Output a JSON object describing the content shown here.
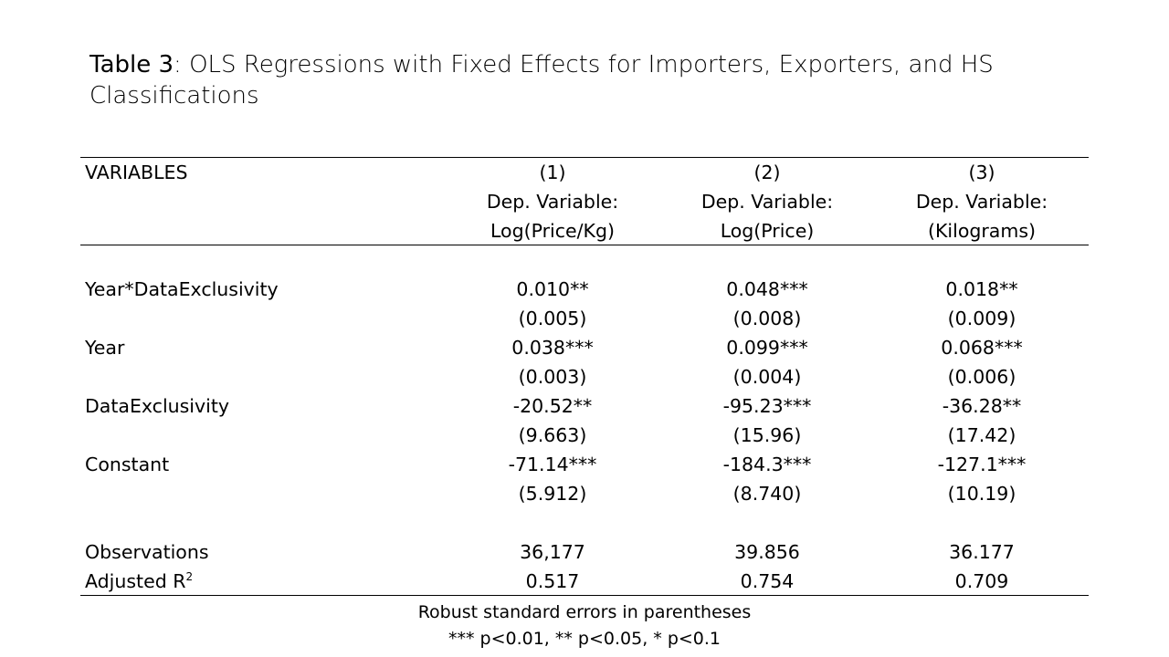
{
  "title": {
    "label": "Table 3",
    "text": ": OLS Regressions with Fixed Effects for Importers, Exporters, and HS Classifications"
  },
  "header": {
    "variables_label": "VARIABLES",
    "columns": [
      {
        "num": "(1)",
        "dep": "Dep. Variable:",
        "var": "Log(Price/Kg)"
      },
      {
        "num": "(2)",
        "dep": "Dep. Variable:",
        "var": "Log(Price)"
      },
      {
        "num": "(3)",
        "dep": "Dep. Variable:",
        "var": "(Kilograms)"
      }
    ]
  },
  "rows": [
    {
      "label": "Year*DataExclusivity",
      "coef": [
        "0.010**",
        "0.048***",
        "0.018**"
      ],
      "se": [
        "(0.005)",
        "(0.008)",
        "(0.009)"
      ]
    },
    {
      "label": "Year",
      "coef": [
        "0.038***",
        "0.099***",
        "0.068***"
      ],
      "se": [
        "(0.003)",
        "(0.004)",
        "(0.006)"
      ]
    },
    {
      "label": "DataExclusivity",
      "coef": [
        "-20.52**",
        "-95.23***",
        "-36.28**"
      ],
      "se": [
        "(9.663)",
        "(15.96)",
        "(17.42)"
      ]
    },
    {
      "label": "Constant",
      "coef": [
        "-71.14***",
        "-184.3***",
        "-127.1***"
      ],
      "se": [
        "(5.912)",
        "(8.740)",
        "(10.19)"
      ]
    }
  ],
  "stats": [
    {
      "label": "Observations",
      "values": [
        "36,177",
        "39.856",
        "36.177"
      ]
    },
    {
      "label": "Adjusted R",
      "label_sup": "2",
      "values": [
        "0.517",
        "0.754",
        "0.709"
      ]
    }
  ],
  "notes": {
    "line1": "Robust standard errors in parentheses",
    "line2": "*** p<0.01, ** p<0.05, * p<0.1"
  }
}
